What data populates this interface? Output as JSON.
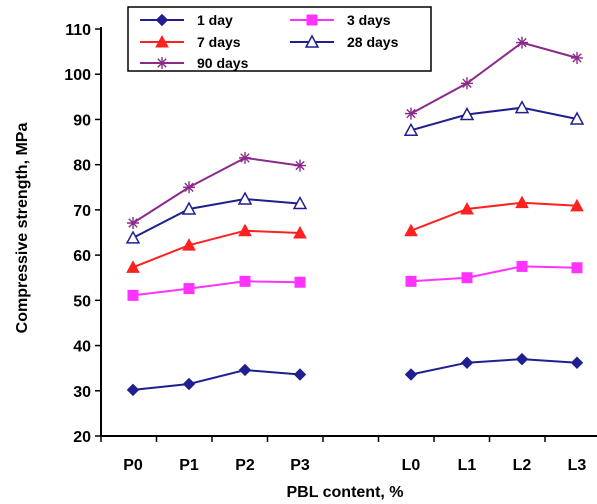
{
  "chart_data": {
    "type": "line",
    "xlabel": "PBL content, %",
    "ylabel": "Compressive strength, MPa",
    "ylim": [
      20,
      110
    ],
    "yticks": [
      20,
      30,
      40,
      50,
      60,
      70,
      80,
      90,
      100,
      110
    ],
    "grid": false,
    "legend_position": "top-left",
    "categories": [
      "P0",
      "P1",
      "P2",
      "P3",
      "L0",
      "L1",
      "L2",
      "L3"
    ],
    "series": [
      {
        "name": "1 day",
        "color": "#1F1F8F",
        "marker": "diamond",
        "values": [
          30.2,
          31.5,
          34.6,
          33.6,
          33.6,
          36.2,
          37.0,
          36.2
        ]
      },
      {
        "name": "3 days",
        "color": "#FF33FF",
        "marker": "square",
        "values": [
          51.1,
          52.6,
          54.2,
          54.0,
          54.2,
          55.0,
          57.5,
          57.2
        ]
      },
      {
        "name": "7 days",
        "color": "#FF2020",
        "marker": "triangle",
        "values": [
          57.3,
          62.2,
          65.4,
          64.9,
          65.4,
          70.2,
          71.6,
          70.9
        ]
      },
      {
        "name": "28 days",
        "color": "#1F1F8F",
        "marker": "triangle-open",
        "values": [
          63.8,
          70.2,
          72.4,
          71.4,
          87.6,
          91.1,
          92.6,
          90.1
        ]
      },
      {
        "name": "90 days",
        "color": "#8B2A8B",
        "marker": "star",
        "values": [
          67.1,
          75.0,
          81.5,
          79.8,
          91.3,
          98.0,
          107.0,
          103.6
        ]
      }
    ]
  }
}
